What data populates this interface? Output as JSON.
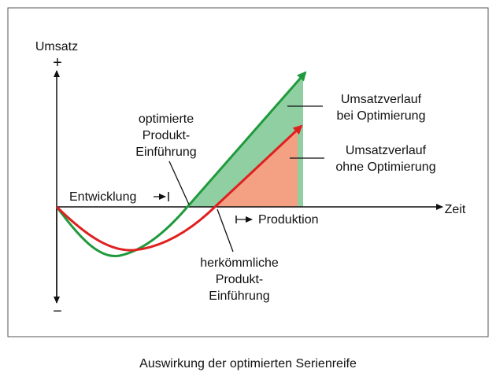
{
  "diagram": {
    "y_axis_label": "Umsatz",
    "y_plus": "+",
    "y_minus": "−",
    "x_axis_label": "Zeit",
    "label_optimized": [
      "optimierte",
      "Produkt-",
      "Einführung"
    ],
    "label_conventional": [
      "herkömmliche",
      "Produkt-",
      "Einführung"
    ],
    "label_development": "Entwicklung",
    "label_production": "Produktion",
    "legend_optimized": [
      "Umsatzverlauf",
      "bei Optimierung"
    ],
    "legend_not_optimized": [
      "Umsatzverlauf",
      "ohne Optimierung"
    ]
  },
  "caption": "Auswirkung der optimierten Serienreife"
}
